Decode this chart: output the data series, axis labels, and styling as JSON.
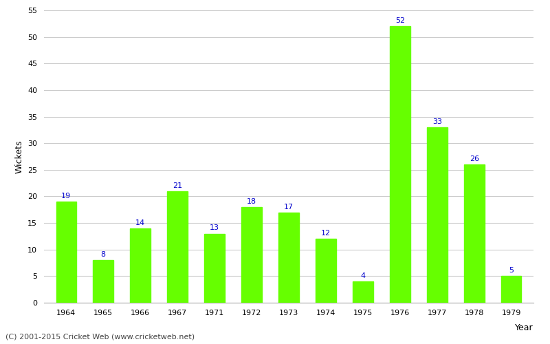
{
  "years": [
    "1964",
    "1965",
    "1966",
    "1967",
    "1971",
    "1972",
    "1973",
    "1974",
    "1975",
    "1976",
    "1977",
    "1978",
    "1979"
  ],
  "values": [
    19,
    8,
    14,
    21,
    13,
    18,
    17,
    12,
    4,
    52,
    33,
    26,
    5
  ],
  "bar_color": "#66ff00",
  "bar_edge_color": "#66ff00",
  "annotation_color": "#0000cc",
  "annotation_fontsize": 8,
  "xlabel": "Year",
  "ylabel": "Wickets",
  "ylim": [
    0,
    55
  ],
  "yticks": [
    0,
    5,
    10,
    15,
    20,
    25,
    30,
    35,
    40,
    45,
    50,
    55
  ],
  "grid_color": "#cccccc",
  "background_color": "#ffffff",
  "footer": "(C) 2001-2015 Cricket Web (www.cricketweb.net)",
  "footer_fontsize": 8,
  "footer_color": "#444444",
  "tick_fontsize": 8,
  "ylabel_fontsize": 9,
  "xlabel_fontsize": 9,
  "bar_width": 0.55
}
